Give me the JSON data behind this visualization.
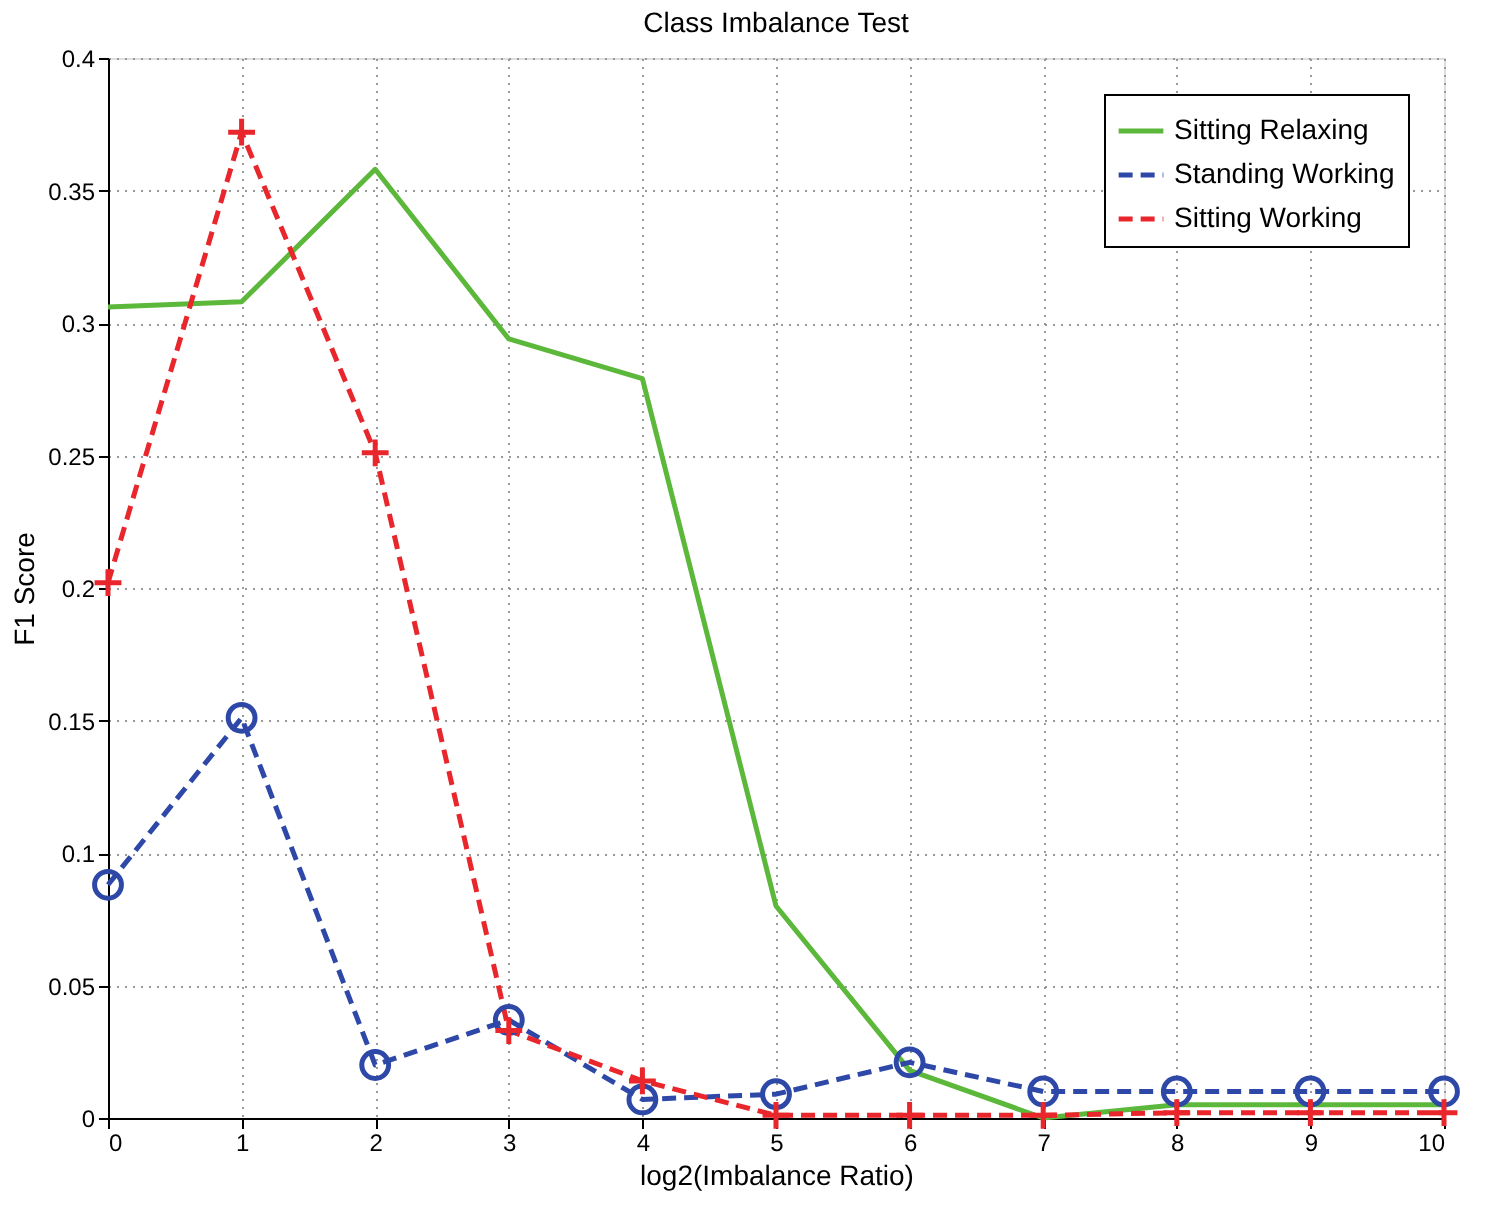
{
  "chart_data": {
    "type": "line",
    "title": "Class Imbalance Test",
    "xlabel": "log2(Imbalance Ratio)",
    "ylabel": "F1 Score",
    "x": [
      0,
      1,
      2,
      3,
      4,
      5,
      6,
      7,
      8,
      9,
      10
    ],
    "series": [
      {
        "name": "Sitting Relaxing",
        "color": "#5cb83a",
        "line_style": "solid",
        "marker": "none",
        "values": [
          0.306,
          0.308,
          0.358,
          0.294,
          0.279,
          0.08,
          0.018,
          0.0,
          0.005,
          0.005,
          0.005
        ]
      },
      {
        "name": "Standing Working",
        "color": "#2e48a8",
        "line_style": "dashed",
        "marker": "circle",
        "values": [
          0.088,
          0.151,
          0.02,
          0.037,
          0.007,
          0.009,
          0.021,
          0.01,
          0.01,
          0.01,
          0.01
        ]
      },
      {
        "name": "Sitting Working",
        "color": "#e8262b",
        "line_style": "dashed",
        "marker": "cross",
        "values": [
          0.202,
          0.372,
          0.251,
          0.033,
          0.014,
          0.001,
          0.001,
          0.001,
          0.002,
          0.002,
          0.002
        ]
      }
    ],
    "xlim": [
      0,
      10
    ],
    "xticks": [
      0,
      1,
      2,
      3,
      4,
      5,
      6,
      7,
      8,
      9,
      10
    ],
    "ylim": [
      0,
      0.4
    ],
    "yticks": [
      0,
      0.05,
      0.1,
      0.15,
      0.2,
      0.25,
      0.3,
      0.35,
      0.4
    ],
    "grid": true,
    "legend": "top right"
  }
}
